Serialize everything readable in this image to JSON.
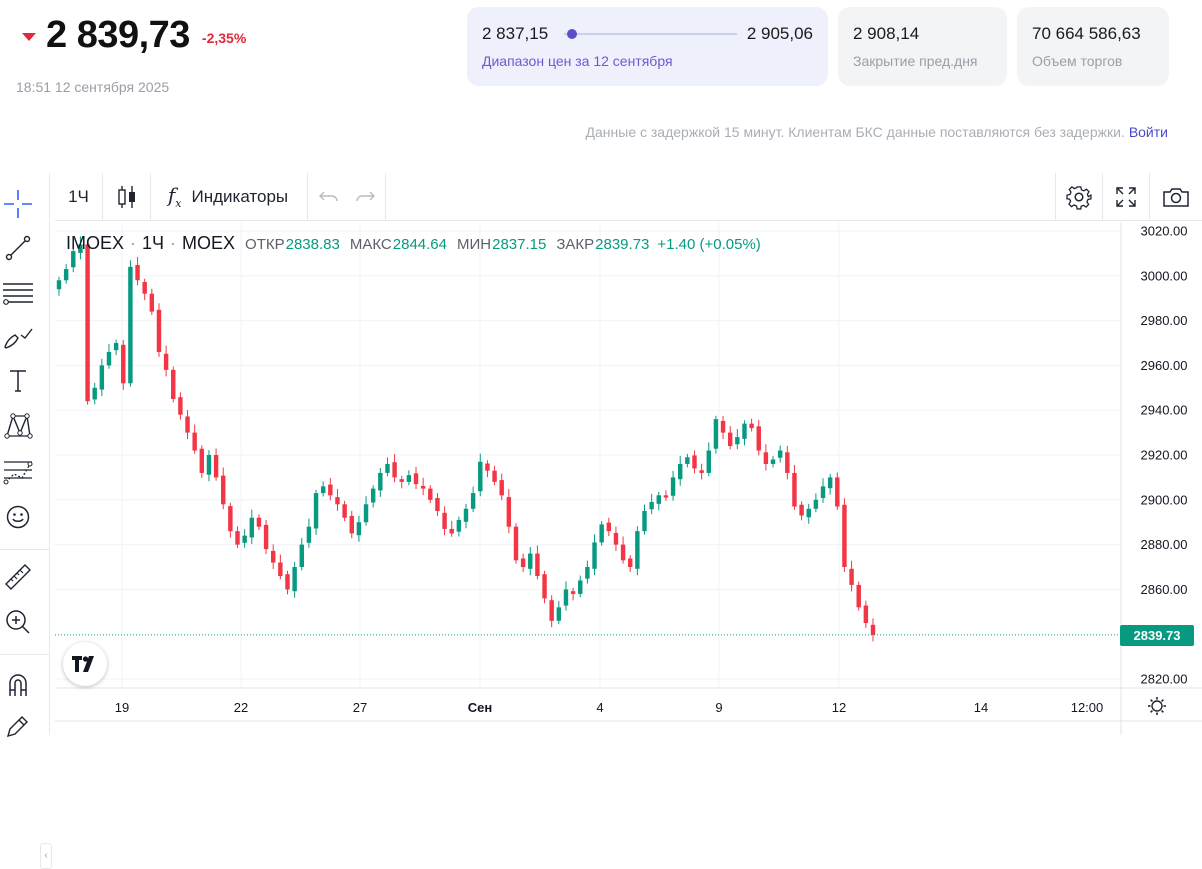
{
  "header": {
    "price": "2 839,73",
    "change_pct": "-2,35%",
    "timestamp": "18:51 12 сентября 2025",
    "range_card": {
      "low": "2 837,15",
      "high": "2 905,06",
      "label": "Диапазон цен за 12 сентября",
      "current_fraction": 0.04
    },
    "close_card": {
      "value": "2 908,14",
      "label": "Закрытие пред.дня"
    },
    "volume_card": {
      "value": "70 664 586,63",
      "label": "Объем торгов"
    },
    "notice": "Данные с задержкой 15 минут. Клиентам БКС данные поставляются без задержки.",
    "login_label": "Войти"
  },
  "toolbar": {
    "interval": "1Ч",
    "indicators_label": "Индикаторы",
    "left_tools": [
      "crosshair-icon",
      "trend-line-icon",
      "horizontal-lines-icon",
      "brush-icon",
      "text-icon",
      "pattern-icon",
      "forecast-icon",
      "emoji-icon",
      "ruler-icon",
      "zoom-in-icon",
      "magnet-icon",
      "lock-pencil-icon"
    ]
  },
  "legend": {
    "symbol": "IMOEX",
    "interval": "1Ч",
    "exchange": "MOEX",
    "open_label": "ОТКР",
    "open": "2838.83",
    "high_label": "МАКС",
    "high": "2844.64",
    "low_label": "МИН",
    "low": "2837.15",
    "close_label": "ЗАКР",
    "close": "2839.73",
    "change": "+1.40 (+0.05%)"
  },
  "colors": {
    "up": "#089981",
    "down": "#f23645",
    "accent": "#5b4fc6",
    "change_red": "#e0293b"
  },
  "chart_data": {
    "type": "candlestick",
    "symbol": "IMOEX",
    "interval": "1Ч",
    "x_ticks": [
      "19",
      "22",
      "27",
      "Сен",
      "4",
      "9",
      "12",
      "14",
      "12:00"
    ],
    "y_ticks": [
      "3020.00",
      "3000.00",
      "2980.00",
      "2960.00",
      "2940.00",
      "2920.00",
      "2900.00",
      "2880.00",
      "2860.00",
      "2820.00"
    ],
    "ylim": [
      2816,
      3024
    ],
    "last_price_label": "2839.73",
    "last_price": 2839.73,
    "close_path": [
      2998,
      3003,
      3011,
      3014,
      2944,
      2950,
      2960,
      2966,
      2970,
      2952,
      3004,
      2998,
      2992,
      2984,
      2966,
      2958,
      2945,
      2938,
      2930,
      2922,
      2912,
      2920,
      2910,
      2898,
      2886,
      2880,
      2884,
      2892,
      2888,
      2878,
      2872,
      2866,
      2860,
      2870,
      2880,
      2888,
      2903,
      2906,
      2902,
      2898,
      2892,
      2885,
      2890,
      2898,
      2905,
      2912,
      2916,
      2910,
      2908,
      2911,
      2907,
      2905,
      2900,
      2895,
      2887,
      2885,
      2891,
      2896,
      2903,
      2917,
      2913,
      2908,
      2902,
      2888,
      2873,
      2870,
      2876,
      2866,
      2856,
      2846,
      2852,
      2860,
      2858,
      2864,
      2870,
      2881,
      2889,
      2886,
      2880,
      2873,
      2870,
      2886,
      2895,
      2899,
      2902,
      2901,
      2910,
      2916,
      2919,
      2914,
      2912,
      2922,
      2936,
      2930,
      2924,
      2928,
      2934,
      2932,
      2922,
      2916,
      2918,
      2922,
      2912,
      2897,
      2893,
      2896,
      2900,
      2906,
      2910,
      2897,
      2870,
      2862,
      2852,
      2845,
      2839.73
    ]
  }
}
